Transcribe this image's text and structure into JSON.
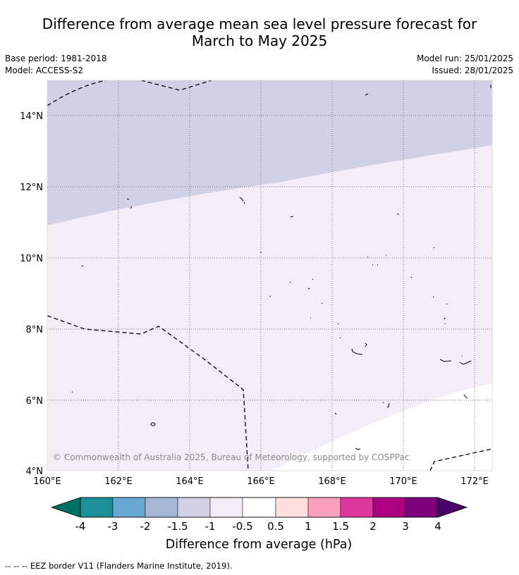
{
  "header": {
    "title_line1": "Difference from average mean sea level pressure forecast for",
    "title_line2": "March to May 2025",
    "base_period": "Base period: 1981-2018",
    "model": "Model: ACCESS-S2",
    "model_run": "Model run: 25/01/2025",
    "issued": "Issued: 28/01/2025"
  },
  "map": {
    "lon_labels": [
      "160°E",
      "162°E",
      "164°E",
      "166°E",
      "168°E",
      "170°E",
      "172°E"
    ],
    "lat_labels": [
      "14°N",
      "12°N",
      "10°N",
      "8°N",
      "6°N",
      "4°N"
    ],
    "copyright": "© Commonwealth of Australia 2025, Bureau of Meteorology, supported by COSPPac",
    "regions": [
      {
        "category": "-1.5 to -1",
        "color": "#d0d0e6"
      },
      {
        "category": "-1 to -0.5",
        "color": "#f4ecf6"
      },
      {
        "category": "-0.5 to 0.5",
        "color": "#ffffff"
      }
    ]
  },
  "colorbar": {
    "title": "Difference from average (hPa)",
    "ticks": [
      "-4",
      "-3",
      "-2",
      "-1.5",
      "-1",
      "-0.5",
      "0.5",
      "1",
      "1.5",
      "2",
      "3",
      "4"
    ],
    "colors": [
      "#006e60",
      "#1b9098",
      "#66a8d2",
      "#a7b7d6",
      "#d0d0e6",
      "#f4ecf6",
      "#ffffff",
      "#ffdfe0",
      "#f9a0bc",
      "#dc399f",
      "#ac0081",
      "#7b007c",
      "#4b006b"
    ]
  },
  "footer": {
    "legend_symbol": "-- -- --",
    "legend_text": "EEZ border V11 (Flanders Marine Institute, 2019)."
  }
}
